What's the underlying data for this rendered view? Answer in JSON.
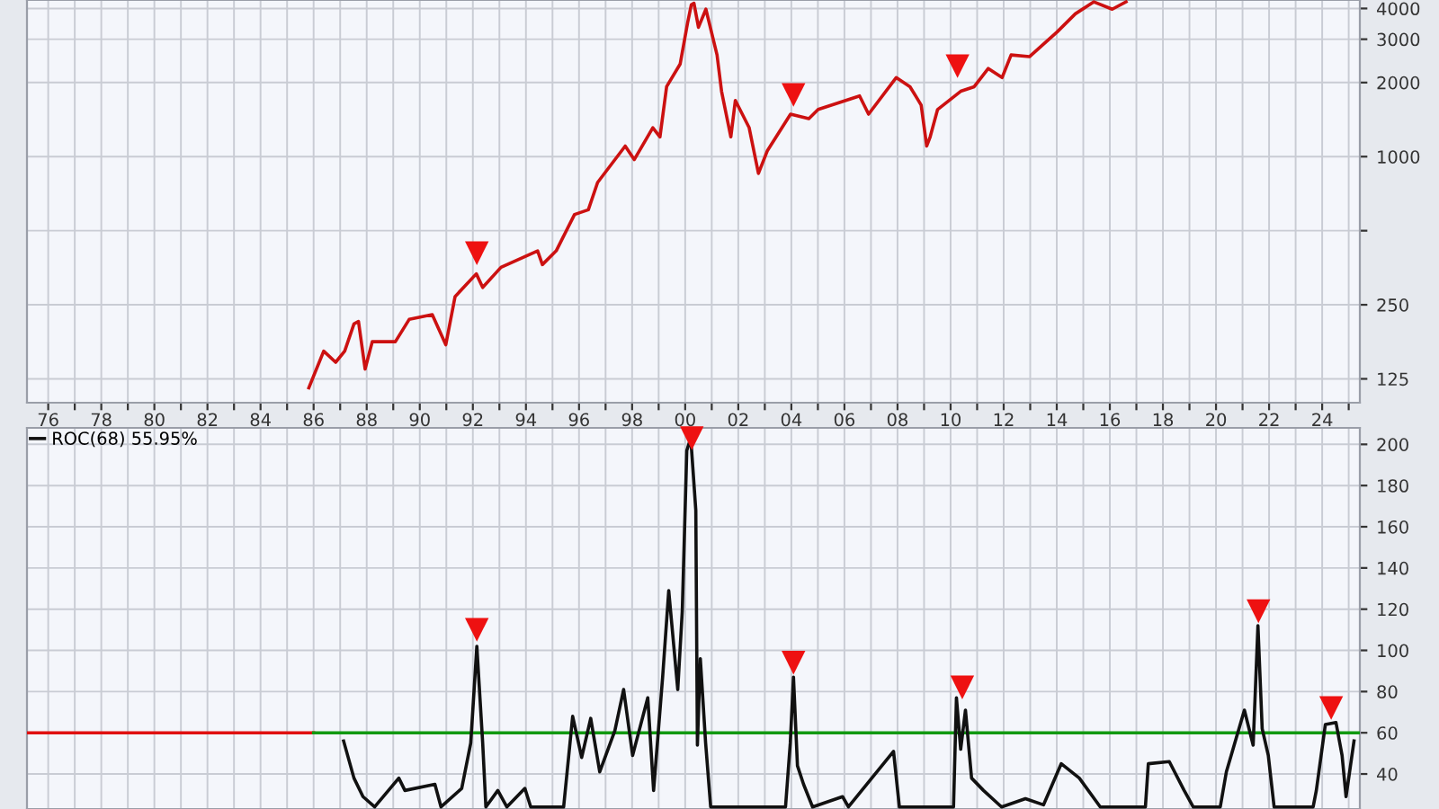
{
  "chart_data": [
    {
      "type": "line",
      "log": "y",
      "grid": true,
      "xlim": [
        1975.2,
        2025.42
      ],
      "ylim": [
        100,
        4330
      ],
      "xticks": [
        {
          "value": 1976,
          "label": "76"
        },
        {
          "value": 1977,
          "label": null
        },
        {
          "value": 1978,
          "label": "78"
        },
        {
          "value": 1979,
          "label": null
        },
        {
          "value": 1980,
          "label": "80"
        },
        {
          "value": 1981,
          "label": null
        },
        {
          "value": 1982,
          "label": "82"
        },
        {
          "value": 1983,
          "label": null
        },
        {
          "value": 1984,
          "label": "84"
        },
        {
          "value": 1985,
          "label": null
        },
        {
          "value": 1986,
          "label": "86"
        },
        {
          "value": 1987,
          "label": null
        },
        {
          "value": 1988,
          "label": "88"
        },
        {
          "value": 1989,
          "label": null
        },
        {
          "value": 1990,
          "label": "90"
        },
        {
          "value": 1991,
          "label": null
        },
        {
          "value": 1992,
          "label": "92"
        },
        {
          "value": 1993,
          "label": null
        },
        {
          "value": 1994,
          "label": "94"
        },
        {
          "value": 1995,
          "label": null
        },
        {
          "value": 1996,
          "label": "96"
        },
        {
          "value": 1997,
          "label": null
        },
        {
          "value": 1998,
          "label": "98"
        },
        {
          "value": 1999,
          "label": null
        },
        {
          "value": 2000,
          "label": "00"
        },
        {
          "value": 2001,
          "label": null
        },
        {
          "value": 2002,
          "label": "02"
        },
        {
          "value": 2003,
          "label": null
        },
        {
          "value": 2004,
          "label": "04"
        },
        {
          "value": 2005,
          "label": null
        },
        {
          "value": 2006,
          "label": "06"
        },
        {
          "value": 2007,
          "label": null
        },
        {
          "value": 2008,
          "label": "08"
        },
        {
          "value": 2009,
          "label": null
        },
        {
          "value": 2010,
          "label": "10"
        },
        {
          "value": 2011,
          "label": null
        },
        {
          "value": 2012,
          "label": "12"
        },
        {
          "value": 2013,
          "label": null
        },
        {
          "value": 2014,
          "label": "14"
        },
        {
          "value": 2015,
          "label": null
        },
        {
          "value": 2016,
          "label": "16"
        },
        {
          "value": 2017,
          "label": null
        },
        {
          "value": 2018,
          "label": "18"
        },
        {
          "value": 2019,
          "label": null
        },
        {
          "value": 2020,
          "label": "20"
        },
        {
          "value": 2021,
          "label": null
        },
        {
          "value": 2022,
          "label": "22"
        },
        {
          "value": 2023,
          "label": null
        },
        {
          "value": 2024,
          "label": "24"
        },
        {
          "value": 2025,
          "label": null
        }
      ],
      "yticks": [
        125,
        250,
        {
          "value": 500,
          "label": null
        },
        1000,
        2000,
        3000,
        4000
      ],
      "series": [
        {
          "color": "#cc1111",
          "x": [
            1985.82,
            1986.38,
            1986.83,
            1987.17,
            1987.52,
            1987.69,
            1987.94,
            1988.21,
            1989.08,
            1989.6,
            1990.47,
            1990.98,
            1991.33,
            1992.13,
            1992.37,
            1993.06,
            1994.44,
            1994.62,
            1995.14,
            1995.83,
            1996.35,
            1996.7,
            1997.74,
            1998.08,
            1998.78,
            1999.05,
            1999.3,
            1999.81,
            2000.09,
            2000.23,
            2000.33,
            2000.5,
            2000.78,
            2001.2,
            2001.37,
            2001.72,
            2001.89,
            2002.41,
            2002.76,
            2003.1,
            2003.97,
            2004.66,
            2005.01,
            2006.57,
            2006.91,
            2007.95,
            2008.47,
            2008.89,
            2009.1,
            2009.23,
            2009.51,
            2010.38,
            2010.89,
            2011.42,
            2011.94,
            2012.28,
            2012.97,
            2014.01,
            2014.7,
            2015.4,
            2016.09,
            2016.61
          ],
          "values": [
            115,
            162,
            146,
            162,
            209,
            214,
            137,
            177,
            177,
            218,
            228,
            172,
            270,
            334,
            294,
            355,
            414,
            364,
            414,
            582,
            608,
            785,
            1104,
            972,
            1311,
            1203,
            1924,
            2379,
            3494,
            4141,
            4200,
            3352,
            3973,
            2590,
            1843,
            1203,
            1692,
            1311,
            855,
            1059,
            1488,
            1427,
            1554,
            1765,
            1488,
            2095,
            1924,
            1621,
            1104,
            1203,
            1554,
            1843,
            1924,
            2282,
            2095,
            2590,
            2548,
            3209,
            3805,
            4255,
            3973,
            4255
          ]
        },
        {
          "type": "scatter",
          "marker": "triangle",
          "color": "#ee1111",
          "x": [
            1992.15,
            2004.08,
            2010.26
          ],
          "values": [
            405,
            1780,
            2330
          ]
        }
      ]
    },
    {
      "type": "line",
      "grid": true,
      "legend": "top left",
      "tick_labels": "y",
      "xlim": [
        1975.2,
        2025.42
      ],
      "ylim": [
        23,
        208
      ],
      "xticks": [
        1976,
        1977,
        1978,
        1979,
        1980,
        1981,
        1982,
        1983,
        1984,
        1985,
        1986,
        1987,
        1988,
        1989,
        1990,
        1991,
        1992,
        1993,
        1994,
        1995,
        1996,
        1997,
        1998,
        1999,
        2000,
        2001,
        2002,
        2003,
        2004,
        2005,
        2006,
        2007,
        2008,
        2009,
        2010,
        2011,
        2012,
        2013,
        2014,
        2015,
        2016,
        2017,
        2018,
        2019,
        2020,
        2021,
        2022,
        2023,
        2024,
        2025
      ],
      "yticks": [
        40,
        60,
        80,
        100,
        120,
        140,
        160,
        180,
        200
      ],
      "series": [
        {
          "color": "#e01010",
          "x": [
            1975.2,
            1986.0
          ],
          "values": [
            60,
            60
          ]
        },
        {
          "color": "#119911",
          "x": [
            1986.0,
            2025.42
          ],
          "values": [
            60,
            60
          ]
        },
        {
          "name": "ROC(68) 55.95%",
          "color": "#111111",
          "x": [
            1987.13,
            1987.52,
            1987.86,
            1988.3,
            1989.21,
            1989.44,
            1990.57,
            1990.8,
            1991.58,
            1991.92,
            1992.15,
            1992.37,
            1992.49,
            1992.94,
            1993.28,
            1993.96,
            1994.18,
            1995.42,
            1995.76,
            1996.1,
            1996.44,
            1996.78,
            1997.35,
            1997.68,
            1998.02,
            1998.59,
            1998.81,
            1999.15,
            1999.38,
            1999.72,
            1999.89,
            2000.06,
            2000.21,
            2000.4,
            2000.46,
            2000.57,
            2000.77,
            2000.96,
            2003.78,
            2003.96,
            2004.08,
            2004.23,
            2004.46,
            2004.8,
            2005.93,
            2006.15,
            2007.85,
            2008.07,
            2010.11,
            2010.22,
            2010.38,
            2010.56,
            2010.79,
            2011.24,
            2011.92,
            2012.82,
            2013.5,
            2014.17,
            2014.85,
            2015.64,
            2017.34,
            2017.45,
            2018.24,
            2018.8,
            2019.14,
            2020.16,
            2020.39,
            2021.07,
            2021.4,
            2021.58,
            2021.74,
            2021.97,
            2022.19,
            2023.66,
            2023.78,
            2024.12,
            2024.52,
            2024.75,
            2024.9,
            2025.2
          ],
          "values": [
            56,
            38,
            29,
            24,
            38,
            32,
            35,
            24,
            33,
            55,
            102,
            55,
            24,
            32,
            24,
            33,
            24,
            24,
            68,
            48,
            67,
            41,
            61,
            81,
            49,
            77,
            32,
            87,
            129,
            81,
            119,
            197,
            203,
            168,
            54,
            96,
            55,
            24,
            24,
            55,
            87,
            44,
            35,
            24,
            29,
            24,
            51,
            24,
            24,
            77,
            52,
            71,
            38,
            32,
            24,
            28,
            25,
            45,
            38,
            24,
            24,
            45,
            46,
            32,
            24,
            24,
            41,
            71,
            54,
            112,
            62,
            49,
            24,
            24,
            32,
            64,
            65,
            49,
            29,
            56
          ]
        },
        {
          "type": "scatter",
          "marker": "triangle",
          "color": "#ee1111",
          "x": [
            1992.15,
            2000.25,
            2004.08,
            2010.44,
            2021.6,
            2024.34
          ],
          "values": [
            110,
            203,
            94,
            82,
            119,
            72
          ]
        }
      ]
    }
  ]
}
